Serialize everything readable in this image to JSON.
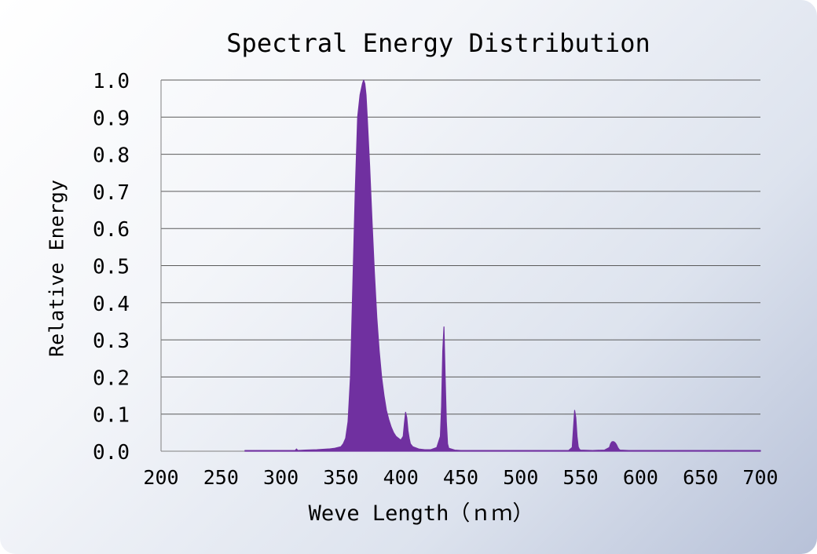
{
  "chart_data": {
    "type": "area",
    "title": "Spectral Energy Distribution",
    "xlabel": "Weve Length（ｎｍ）",
    "ylabel": "Relative Energy",
    "xlim": [
      200,
      700
    ],
    "ylim": [
      0,
      1.0
    ],
    "x_ticks": [
      "200",
      "250",
      "300",
      "350",
      "400",
      "450",
      "500",
      "550",
      "600",
      "650",
      "700"
    ],
    "y_ticks": [
      "0.0",
      "0.1",
      "0.2",
      "0.3",
      "0.4",
      "0.5",
      "0.6",
      "0.7",
      "0.8",
      "0.9",
      "1.0"
    ],
    "grid": true,
    "legend": "none",
    "color": "#7030a0",
    "series": [
      {
        "x": [
          270,
          300,
          312,
          313,
          314,
          320,
          330,
          340,
          345,
          350,
          352,
          354,
          356,
          358,
          360,
          362,
          364,
          366,
          368,
          369,
          370,
          371,
          372,
          374,
          376,
          378,
          380,
          382,
          384,
          386,
          388,
          390,
          392,
          394,
          396,
          398,
          400,
          402,
          403,
          404,
          405,
          406,
          407,
          408,
          410,
          415,
          420,
          425,
          430,
          433,
          434,
          435,
          436,
          437,
          438,
          439,
          440,
          445,
          450,
          500,
          540,
          543,
          544,
          545,
          546,
          547,
          548,
          549,
          550,
          560,
          570,
          574,
          575,
          576,
          577,
          578,
          579,
          580,
          581,
          582,
          583,
          590,
          650,
          700
        ],
        "y": [
          0.002,
          0.002,
          0.002,
          0.006,
          0.002,
          0.003,
          0.004,
          0.006,
          0.008,
          0.012,
          0.02,
          0.035,
          0.08,
          0.2,
          0.45,
          0.7,
          0.9,
          0.96,
          0.99,
          1.0,
          0.99,
          0.96,
          0.9,
          0.77,
          0.62,
          0.48,
          0.36,
          0.27,
          0.2,
          0.15,
          0.11,
          0.085,
          0.065,
          0.05,
          0.04,
          0.035,
          0.03,
          0.04,
          0.075,
          0.105,
          0.09,
          0.055,
          0.035,
          0.02,
          0.012,
          0.006,
          0.004,
          0.004,
          0.01,
          0.04,
          0.12,
          0.27,
          0.335,
          0.2,
          0.08,
          0.02,
          0.008,
          0.003,
          0.002,
          0.002,
          0.002,
          0.01,
          0.06,
          0.11,
          0.09,
          0.04,
          0.012,
          0.005,
          0.003,
          0.002,
          0.003,
          0.01,
          0.02,
          0.025,
          0.026,
          0.025,
          0.022,
          0.017,
          0.01,
          0.005,
          0.003,
          0.002,
          0.002,
          0.002
        ]
      }
    ]
  }
}
